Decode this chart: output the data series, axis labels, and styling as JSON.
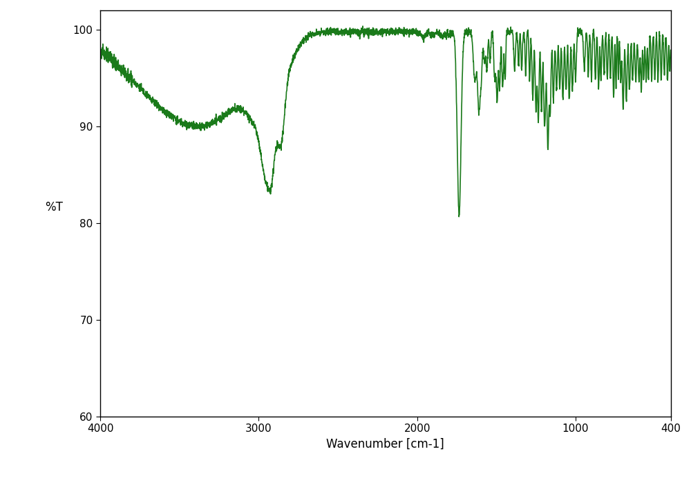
{
  "title": "",
  "xlabel": "Wavenumber [cm-1]",
  "ylabel": "%T",
  "xlim": [
    4000,
    400
  ],
  "ylim": [
    60,
    102
  ],
  "yticks": [
    60,
    70,
    80,
    90,
    100
  ],
  "xticks": [
    4000,
    3000,
    2000,
    1000,
    400
  ],
  "line_color": "#1a7a1a",
  "bg_color": "#ffffff",
  "linewidth": 1.2
}
